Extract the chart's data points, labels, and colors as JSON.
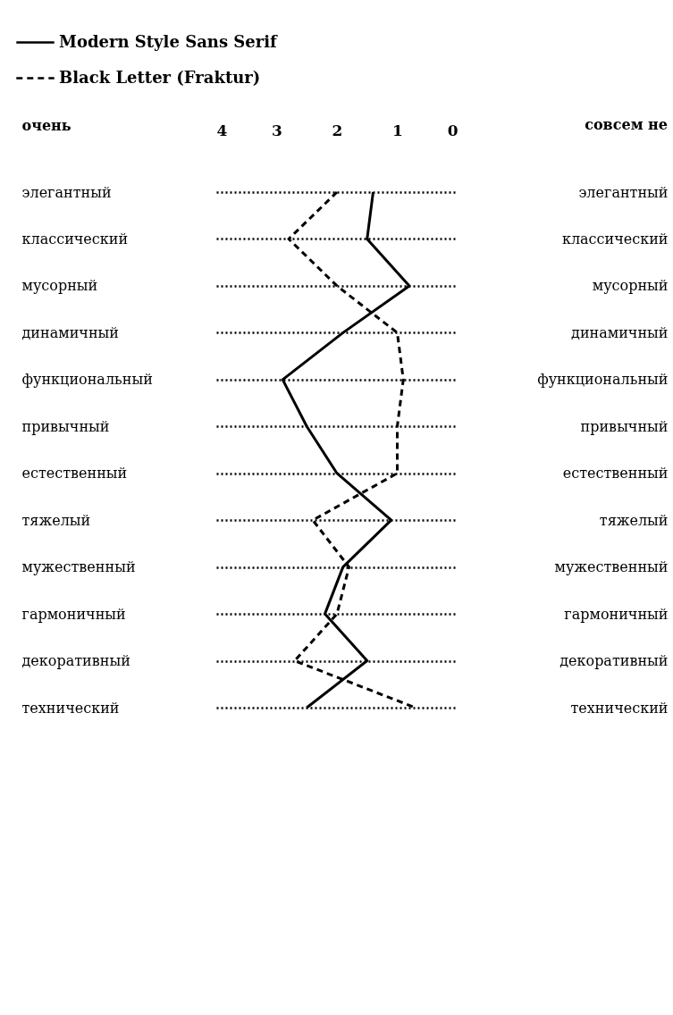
{
  "chart_data": {
    "type": "line",
    "orientation": "horizontal",
    "categories": [
      "элегантный",
      "классический",
      "мусорный",
      "динамичный",
      "функциональный",
      "привычный",
      "естественный",
      "тяжелый",
      "мужественный",
      "гармоничный",
      "декоративный",
      "технический"
    ],
    "ylabel": "очень",
    "annotations": [
      "совсем не"
    ],
    "xlim": [
      4,
      0
    ],
    "xticks": [
      4,
      3,
      2,
      1,
      0
    ],
    "grid": "y",
    "legend": "top left",
    "marker": "none",
    "series": [
      {
        "name": "Modern Style Sans Serif",
        "color": "#000000",
        "line_style": "solid",
        "values": [
          1.4,
          1.5,
          0.8,
          1.9,
          2.9,
          2.5,
          2.0,
          1.1,
          1.9,
          2.2,
          1.5,
          2.5
        ]
      },
      {
        "name": "Black Letter (Fraktur)",
        "color": "#000000",
        "line_style": "dashed",
        "values": [
          2.0,
          2.8,
          2.0,
          1.0,
          0.9,
          1.0,
          1.0,
          2.4,
          1.8,
          2.0,
          2.7,
          0.7
        ]
      }
    ]
  }
}
